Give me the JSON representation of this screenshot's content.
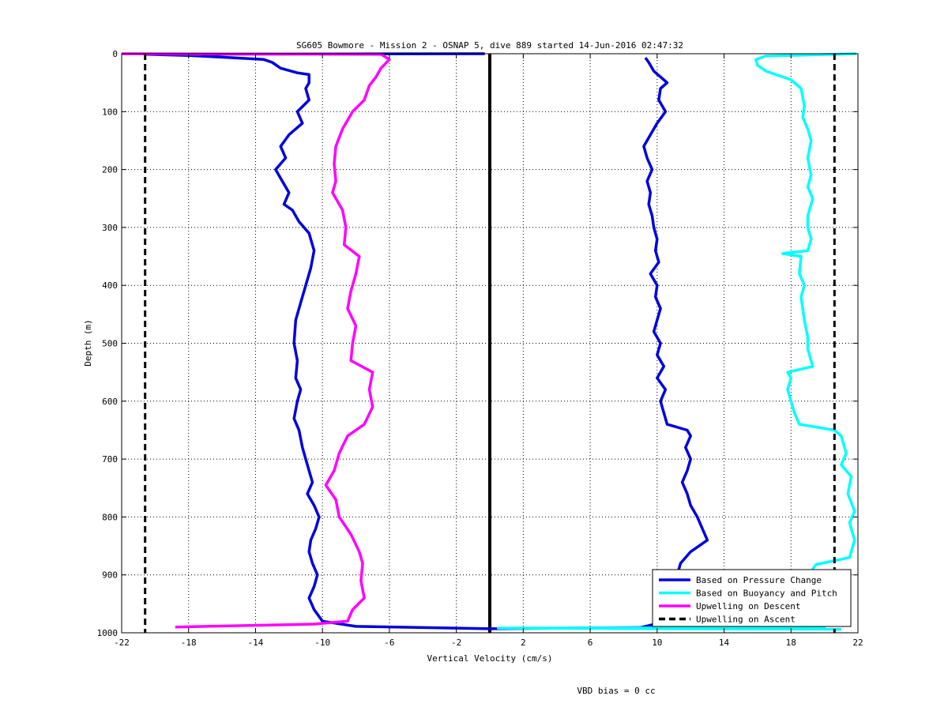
{
  "chart_data": {
    "type": "line",
    "title": "SG605 Bowmore - Mission 2 - OSNAP 5, dive 889 started 14-Jun-2016 02:47:32",
    "xlabel": "Vertical Velocity (cm/s)",
    "ylabel": "Depth (m)",
    "xlim": [
      -22,
      22
    ],
    "ylim": [
      1000,
      0
    ],
    "xticks": [
      -22,
      -18,
      -14,
      -10,
      -6,
      -2,
      2,
      6,
      10,
      14,
      18,
      22
    ],
    "yticks": [
      0,
      100,
      200,
      300,
      400,
      500,
      600,
      700,
      800,
      900,
      1000
    ],
    "grid": true,
    "legend_position": "bottom-right",
    "zero_line_x": 0,
    "series": [
      {
        "name": "Based on Pressure Change",
        "color": "#0000dd",
        "style": "solid",
        "points": [
          [
            -0.3,
            0
          ],
          [
            -20.5,
            1
          ],
          [
            -18,
            3
          ],
          [
            -16,
            6
          ],
          [
            -13.5,
            10
          ],
          [
            -13,
            15
          ],
          [
            -12.5,
            25
          ],
          [
            -11.5,
            33
          ],
          [
            -10.8,
            36
          ],
          [
            -10.8,
            50
          ],
          [
            -11.0,
            60
          ],
          [
            -10.8,
            80
          ],
          [
            -11.5,
            100
          ],
          [
            -11.2,
            120
          ],
          [
            -12.0,
            140
          ],
          [
            -12.5,
            160
          ],
          [
            -12.2,
            180
          ],
          [
            -12.8,
            200
          ],
          [
            -12.4,
            220
          ],
          [
            -12.0,
            240
          ],
          [
            -12.3,
            260
          ],
          [
            -11.8,
            270
          ],
          [
            -11.4,
            290
          ],
          [
            -10.8,
            310
          ],
          [
            -10.5,
            340
          ],
          [
            -10.7,
            370
          ],
          [
            -11.0,
            400
          ],
          [
            -11.3,
            430
          ],
          [
            -11.6,
            460
          ],
          [
            -11.7,
            500
          ],
          [
            -11.5,
            530
          ],
          [
            -11.6,
            560
          ],
          [
            -11.3,
            580
          ],
          [
            -11.5,
            600
          ],
          [
            -11.7,
            630
          ],
          [
            -11.4,
            650
          ],
          [
            -11.2,
            680
          ],
          [
            -11.0,
            700
          ],
          [
            -10.8,
            720
          ],
          [
            -10.6,
            740
          ],
          [
            -10.9,
            760
          ],
          [
            -10.5,
            780
          ],
          [
            -10.2,
            800
          ],
          [
            -10.4,
            820
          ],
          [
            -10.7,
            840
          ],
          [
            -10.8,
            860
          ],
          [
            -10.6,
            880
          ],
          [
            -10.3,
            900
          ],
          [
            -10.5,
            920
          ],
          [
            -10.8,
            940
          ],
          [
            -10.5,
            960
          ],
          [
            -10.0,
            980
          ],
          [
            -8.0,
            989
          ],
          [
            0.0,
            993
          ],
          [
            9.0,
            991
          ],
          [
            10.3,
            982
          ],
          [
            10.2,
            960
          ],
          [
            10.6,
            940
          ],
          [
            10.9,
            920
          ],
          [
            11.2,
            900
          ],
          [
            11.4,
            880
          ],
          [
            12.0,
            860
          ],
          [
            13.0,
            840
          ],
          [
            12.7,
            820
          ],
          [
            12.4,
            800
          ],
          [
            12.0,
            780
          ],
          [
            11.8,
            760
          ],
          [
            11.5,
            740
          ],
          [
            11.8,
            720
          ],
          [
            12.0,
            700
          ],
          [
            11.7,
            680
          ],
          [
            12.0,
            660
          ],
          [
            11.8,
            650
          ],
          [
            10.6,
            640
          ],
          [
            10.4,
            620
          ],
          [
            10.2,
            600
          ],
          [
            10.5,
            580
          ],
          [
            10.0,
            560
          ],
          [
            10.4,
            540
          ],
          [
            10.0,
            520
          ],
          [
            10.2,
            500
          ],
          [
            9.8,
            480
          ],
          [
            10.0,
            460
          ],
          [
            10.2,
            440
          ],
          [
            9.9,
            420
          ],
          [
            10.0,
            400
          ],
          [
            9.6,
            380
          ],
          [
            10.1,
            360
          ],
          [
            9.9,
            340
          ],
          [
            10.0,
            320
          ],
          [
            9.8,
            300
          ],
          [
            9.7,
            280
          ],
          [
            9.5,
            260
          ],
          [
            9.6,
            240
          ],
          [
            9.4,
            220
          ],
          [
            9.7,
            200
          ],
          [
            9.4,
            180
          ],
          [
            9.2,
            160
          ],
          [
            9.6,
            140
          ],
          [
            10.0,
            120
          ],
          [
            10.5,
            100
          ],
          [
            10.1,
            80
          ],
          [
            10.2,
            60
          ],
          [
            10.6,
            50
          ],
          [
            9.8,
            30
          ],
          [
            9.5,
            15
          ],
          [
            9.3,
            7
          ]
        ]
      },
      {
        "name": "Based on Buoyancy and Pitch",
        "color": "#00ffff",
        "style": "solid",
        "points": [
          [
            21.0,
            994
          ],
          [
            0.5,
            992
          ],
          [
            20.0,
            991
          ],
          [
            19.8,
            980
          ],
          [
            20.0,
            960
          ],
          [
            20.3,
            940
          ],
          [
            20.2,
            920
          ],
          [
            19.0,
            905
          ],
          [
            19.3,
            890
          ],
          [
            19.5,
            882
          ],
          [
            21.5,
            870
          ],
          [
            21.8,
            840
          ],
          [
            21.5,
            810
          ],
          [
            21.8,
            790
          ],
          [
            21.4,
            760
          ],
          [
            21.6,
            730
          ],
          [
            21.0,
            710
          ],
          [
            21.3,
            690
          ],
          [
            21.0,
            660
          ],
          [
            20.6,
            650
          ],
          [
            18.5,
            640
          ],
          [
            18.2,
            620
          ],
          [
            18.0,
            600
          ],
          [
            17.8,
            580
          ],
          [
            18.0,
            560
          ],
          [
            17.8,
            550
          ],
          [
            19.3,
            540
          ],
          [
            19.0,
            510
          ],
          [
            19.0,
            490
          ],
          [
            18.8,
            460
          ],
          [
            18.6,
            420
          ],
          [
            18.8,
            400
          ],
          [
            18.5,
            380
          ],
          [
            18.6,
            350
          ],
          [
            17.5,
            345
          ],
          [
            19.0,
            340
          ],
          [
            19.2,
            320
          ],
          [
            19.0,
            300
          ],
          [
            19.0,
            280
          ],
          [
            19.3,
            250
          ],
          [
            19.0,
            230
          ],
          [
            19.2,
            210
          ],
          [
            19.0,
            180
          ],
          [
            19.2,
            150
          ],
          [
            19.0,
            130
          ],
          [
            18.7,
            110
          ],
          [
            18.8,
            90
          ],
          [
            18.6,
            60
          ],
          [
            18.0,
            45
          ],
          [
            16.5,
            30
          ],
          [
            16.0,
            20
          ],
          [
            15.9,
            10
          ],
          [
            16.5,
            4
          ],
          [
            21.9,
            0
          ]
        ]
      },
      {
        "name": "Upwelling on Descent",
        "color": "#ff00ff",
        "style": "solid",
        "points": [
          [
            -22,
            0
          ],
          [
            -6.5,
            1
          ],
          [
            -6.0,
            10
          ],
          [
            -6.5,
            25
          ],
          [
            -6.8,
            40
          ],
          [
            -7.2,
            55
          ],
          [
            -7.5,
            80
          ],
          [
            -8.2,
            100
          ],
          [
            -8.8,
            130
          ],
          [
            -9.2,
            160
          ],
          [
            -9.3,
            190
          ],
          [
            -9.2,
            220
          ],
          [
            -9.4,
            240
          ],
          [
            -8.8,
            270
          ],
          [
            -8.6,
            300
          ],
          [
            -8.7,
            330
          ],
          [
            -7.8,
            350
          ],
          [
            -8.0,
            380
          ],
          [
            -8.3,
            410
          ],
          [
            -8.5,
            440
          ],
          [
            -8.0,
            470
          ],
          [
            -8.2,
            500
          ],
          [
            -8.3,
            530
          ],
          [
            -7.0,
            550
          ],
          [
            -7.2,
            580
          ],
          [
            -7.0,
            610
          ],
          [
            -7.5,
            640
          ],
          [
            -8.5,
            660
          ],
          [
            -9.0,
            690
          ],
          [
            -9.3,
            720
          ],
          [
            -9.8,
            745
          ],
          [
            -9.2,
            770
          ],
          [
            -9.0,
            800
          ],
          [
            -8.3,
            830
          ],
          [
            -7.8,
            860
          ],
          [
            -7.6,
            880
          ],
          [
            -7.7,
            910
          ],
          [
            -7.5,
            940
          ],
          [
            -8.2,
            960
          ],
          [
            -8.5,
            980
          ],
          [
            -10.5,
            985
          ],
          [
            -18.8,
            990
          ]
        ]
      },
      {
        "name": "Upwelling on Ascent",
        "color": "#000000",
        "style": "dashed",
        "points": [
          [
            -20.6,
            0
          ],
          [
            -20.6,
            1000
          ]
        ],
        "points_b": [
          [
            20.6,
            0
          ],
          [
            20.6,
            1000
          ]
        ]
      }
    ],
    "annotation": "VBD bias = 0 cc"
  }
}
